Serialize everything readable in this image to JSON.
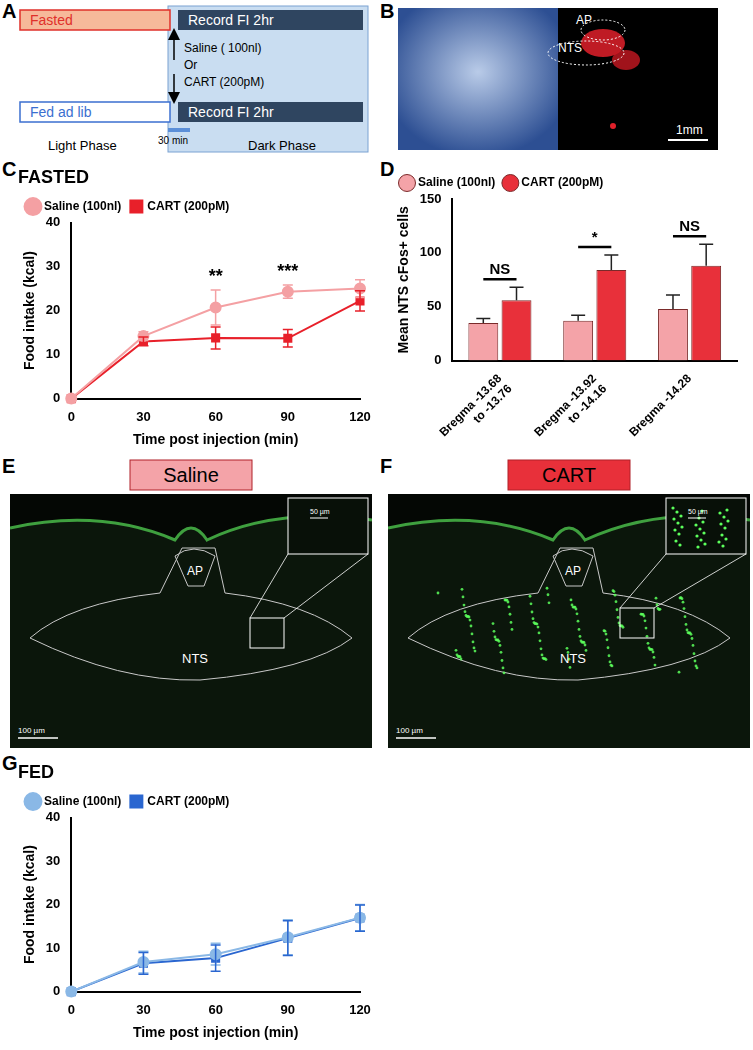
{
  "figure": {
    "panel_labels": [
      "A",
      "B",
      "C",
      "D",
      "E",
      "F",
      "G"
    ],
    "schematic": {
      "fasted": "Fasted",
      "fed": "Fed ad lib",
      "record": "Record FI 2hr",
      "saline": "Saline ( 100nl)",
      "or": "Or",
      "cart": "CART (200pM)",
      "interval": "30 min",
      "light_phase": "Light Phase",
      "dark_phase": "Dark Phase"
    },
    "histology": {
      "ap": "AP",
      "nts": "NTS",
      "scale": "1mm"
    },
    "saline_image": {
      "title": "Saline",
      "ap": "AP",
      "nts": "NTS",
      "scale": "100 µm",
      "inset_scale": "50 µm"
    },
    "cart_image": {
      "title": "CART",
      "ap": "AP",
      "nts": "NTS",
      "scale": "100 µm",
      "inset_scale": "50 µm"
    }
  },
  "chart_data": [
    {
      "type": "line",
      "title": "FASTED",
      "x_label": "Time post injection (min)",
      "y_label": "Food intake (kcal)",
      "x": [
        0,
        30,
        60,
        90,
        120
      ],
      "xlim": [
        0,
        120
      ],
      "xticks": [
        0,
        30,
        60,
        90,
        120
      ],
      "ylim": [
        0,
        40
      ],
      "yticks": [
        0,
        10,
        20,
        30,
        40
      ],
      "grid": false,
      "legend": "top-left",
      "series": [
        {
          "name": "Saline (100nl)",
          "color": "#f4a0a3",
          "marker": "circle",
          "values": [
            0,
            14.2,
            20.7,
            24.3,
            25.0
          ],
          "errors": [
            0,
            1.0,
            4.0,
            1.5,
            2.0
          ]
        },
        {
          "name": "CART (200pM)",
          "color": "#e8202a",
          "marker": "square",
          "values": [
            0,
            13.0,
            13.8,
            13.7,
            22.2
          ],
          "errors": [
            0,
            1.0,
            2.5,
            2.0,
            2.3
          ]
        }
      ],
      "annotations": [
        {
          "x": 60,
          "text": "**"
        },
        {
          "x": 90,
          "text": "***"
        }
      ]
    },
    {
      "type": "bar",
      "y_label": "Mean NTS cFos+ cells",
      "categories": [
        "Bregma -13.68\nto -13.76",
        "Bregma -13.92\nto -14.16",
        "Bregma -14.28"
      ],
      "ylim": [
        0,
        150
      ],
      "yticks": [
        0,
        50,
        100,
        150
      ],
      "grid": false,
      "legend": "top-left",
      "series": [
        {
          "name": "Saline (100nl)",
          "color": "#f4a3a8",
          "values": [
            35,
            37,
            48
          ],
          "errors": [
            4,
            5,
            13
          ]
        },
        {
          "name": "CART (200pM)",
          "color": "#e8303a",
          "values": [
            56,
            84,
            88
          ],
          "errors": [
            12,
            14,
            20
          ]
        }
      ],
      "annotations": [
        {
          "category": "Bregma -13.68\nto -13.76",
          "text": "NS"
        },
        {
          "category": "Bregma -13.92\nto -14.16",
          "text": "*"
        },
        {
          "category": "Bregma -14.28",
          "text": "NS"
        }
      ]
    },
    {
      "type": "line",
      "title": "FED",
      "x_label": "Time post injection (min)",
      "y_label": "Food intake (kcal)",
      "x": [
        0,
        30,
        60,
        90,
        120
      ],
      "xlim": [
        0,
        120
      ],
      "xticks": [
        0,
        30,
        60,
        90,
        120
      ],
      "ylim": [
        0,
        40
      ],
      "yticks": [
        0,
        10,
        20,
        30,
        40
      ],
      "grid": false,
      "legend": "top-left",
      "series": [
        {
          "name": "Saline (100nl)",
          "color": "#8ab8e6",
          "marker": "circle",
          "values": [
            0,
            6.8,
            8.6,
            12.5,
            17.0
          ],
          "errors": [
            0,
            2.5,
            2.5,
            4.0,
            3.0
          ]
        },
        {
          "name": "CART (200pM)",
          "color": "#2a66d0",
          "marker": "square",
          "values": [
            0,
            6.5,
            7.7,
            12.3,
            16.9
          ],
          "errors": [
            0,
            2.5,
            3.0,
            4.0,
            3.0
          ]
        }
      ]
    }
  ]
}
